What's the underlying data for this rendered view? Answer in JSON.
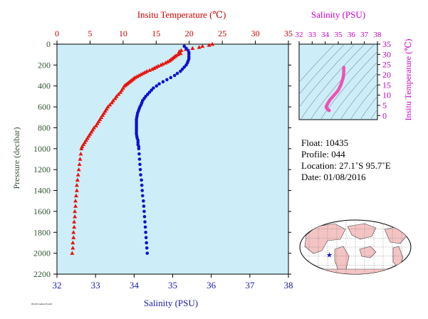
{
  "chart_data": [
    {
      "type": "scatter",
      "title": "",
      "top_axis": {
        "label": "Insitu Temperature (℃)",
        "range": [
          0,
          35
        ],
        "ticks": [
          "0",
          "5",
          "10",
          "15",
          "20",
          "25",
          "30",
          "35"
        ]
      },
      "bottom_axis": {
        "label": "Salinity (PSU)",
        "range": [
          32,
          38
        ],
        "ticks": [
          "32",
          "33",
          "34",
          "35",
          "36",
          "37",
          "38"
        ]
      },
      "left_axis": {
        "label": "Pressure (decibar)",
        "range": [
          0,
          2200
        ],
        "inverted": true,
        "ticks": [
          "0",
          "200",
          "400",
          "600",
          "800",
          "1000",
          "1200",
          "1400",
          "1600",
          "1800",
          "2000",
          "2200"
        ]
      },
      "background": "#cdeef8",
      "series": [
        {
          "key": "temperature",
          "axis": "top",
          "marker": "triangle",
          "color": "#e8140c",
          "points": [
            [
              23.5,
              0
            ],
            [
              23.0,
              10
            ],
            [
              22.0,
              20
            ],
            [
              21.5,
              30
            ],
            [
              20.5,
              40
            ],
            [
              19.5,
              50
            ],
            [
              18.8,
              60
            ],
            [
              18.5,
              70
            ],
            [
              18.6,
              80
            ],
            [
              18.7,
              90
            ],
            [
              18.3,
              100
            ],
            [
              18.0,
              110
            ],
            [
              17.8,
              120
            ],
            [
              17.6,
              130
            ],
            [
              17.4,
              140
            ],
            [
              17.2,
              150
            ],
            [
              17.0,
              160
            ],
            [
              16.7,
              170
            ],
            [
              16.4,
              180
            ],
            [
              16.0,
              190
            ],
            [
              15.7,
              200
            ],
            [
              15.3,
              210
            ],
            [
              15.0,
              220
            ],
            [
              14.7,
              230
            ],
            [
              14.4,
              240
            ],
            [
              14.0,
              250
            ],
            [
              13.6,
              260
            ],
            [
              13.3,
              270
            ],
            [
              13.0,
              280
            ],
            [
              12.7,
              290
            ],
            [
              12.4,
              300
            ],
            [
              12.1,
              310
            ],
            [
              11.8,
              320
            ],
            [
              11.6,
              330
            ],
            [
              11.4,
              340
            ],
            [
              11.2,
              350
            ],
            [
              11.0,
              360
            ],
            [
              10.8,
              370
            ],
            [
              10.6,
              380
            ],
            [
              10.4,
              390
            ],
            [
              10.2,
              400
            ],
            [
              10.0,
              420
            ],
            [
              9.8,
              440
            ],
            [
              9.6,
              460
            ],
            [
              9.3,
              480
            ],
            [
              9.0,
              500
            ],
            [
              8.8,
              520
            ],
            [
              8.5,
              540
            ],
            [
              8.3,
              560
            ],
            [
              8.0,
              580
            ],
            [
              7.7,
              600
            ],
            [
              7.5,
              620
            ],
            [
              7.3,
              640
            ],
            [
              7.1,
              660
            ],
            [
              6.9,
              680
            ],
            [
              6.7,
              700
            ],
            [
              6.5,
              720
            ],
            [
              6.3,
              740
            ],
            [
              6.1,
              760
            ],
            [
              5.9,
              780
            ],
            [
              5.6,
              800
            ],
            [
              5.4,
              820
            ],
            [
              5.2,
              840
            ],
            [
              5.0,
              860
            ],
            [
              4.8,
              880
            ],
            [
              4.6,
              900
            ],
            [
              4.4,
              920
            ],
            [
              4.2,
              940
            ],
            [
              4.0,
              960
            ],
            [
              3.8,
              980
            ],
            [
              3.7,
              1000
            ],
            [
              3.6,
              1050
            ],
            [
              3.5,
              1100
            ],
            [
              3.4,
              1150
            ],
            [
              3.3,
              1200
            ],
            [
              3.2,
              1250
            ],
            [
              3.1,
              1300
            ],
            [
              3.0,
              1350
            ],
            [
              3.0,
              1400
            ],
            [
              2.9,
              1450
            ],
            [
              2.8,
              1500
            ],
            [
              2.8,
              1550
            ],
            [
              2.7,
              1600
            ],
            [
              2.7,
              1650
            ],
            [
              2.6,
              1700
            ],
            [
              2.6,
              1750
            ],
            [
              2.5,
              1800
            ],
            [
              2.5,
              1850
            ],
            [
              2.4,
              1900
            ],
            [
              2.4,
              1950
            ],
            [
              2.3,
              2000
            ]
          ]
        },
        {
          "key": "salinity",
          "axis": "bottom",
          "marker": "circle",
          "color": "#1010d0",
          "points": [
            [
              35.3,
              20
            ],
            [
              35.35,
              40
            ],
            [
              35.4,
              60
            ],
            [
              35.42,
              80
            ],
            [
              35.42,
              100
            ],
            [
              35.42,
              120
            ],
            [
              35.42,
              140
            ],
            [
              35.4,
              160
            ],
            [
              35.38,
              180
            ],
            [
              35.35,
              200
            ],
            [
              35.3,
              220
            ],
            [
              35.25,
              240
            ],
            [
              35.2,
              260
            ],
            [
              35.12,
              280
            ],
            [
              35.05,
              300
            ],
            [
              34.95,
              320
            ],
            [
              34.85,
              340
            ],
            [
              34.75,
              360
            ],
            [
              34.65,
              380
            ],
            [
              34.58,
              400
            ],
            [
              34.5,
              420
            ],
            [
              34.45,
              440
            ],
            [
              34.4,
              460
            ],
            [
              34.35,
              480
            ],
            [
              34.3,
              500
            ],
            [
              34.26,
              520
            ],
            [
              34.22,
              540
            ],
            [
              34.2,
              560
            ],
            [
              34.18,
              580
            ],
            [
              34.15,
              600
            ],
            [
              34.13,
              620
            ],
            [
              34.11,
              640
            ],
            [
              34.09,
              660
            ],
            [
              34.08,
              680
            ],
            [
              34.07,
              700
            ],
            [
              34.06,
              720
            ],
            [
              34.06,
              740
            ],
            [
              34.06,
              760
            ],
            [
              34.06,
              780
            ],
            [
              34.06,
              800
            ],
            [
              34.06,
              820
            ],
            [
              34.06,
              840
            ],
            [
              34.06,
              860
            ],
            [
              34.07,
              880
            ],
            [
              34.08,
              900
            ],
            [
              34.1,
              920
            ],
            [
              34.1,
              940
            ],
            [
              34.1,
              960
            ],
            [
              34.12,
              980
            ],
            [
              34.12,
              1000
            ],
            [
              34.13,
              1050
            ],
            [
              34.14,
              1100
            ],
            [
              34.15,
              1150
            ],
            [
              34.16,
              1200
            ],
            [
              34.17,
              1250
            ],
            [
              34.19,
              1300
            ],
            [
              34.2,
              1350
            ],
            [
              34.21,
              1400
            ],
            [
              34.22,
              1450
            ],
            [
              34.24,
              1500
            ],
            [
              34.25,
              1550
            ],
            [
              34.26,
              1600
            ],
            [
              34.27,
              1650
            ],
            [
              34.28,
              1700
            ],
            [
              34.29,
              1750
            ],
            [
              34.3,
              1800
            ],
            [
              34.31,
              1850
            ],
            [
              34.32,
              1900
            ],
            [
              34.33,
              1950
            ],
            [
              34.34,
              2000
            ]
          ]
        }
      ]
    },
    {
      "type": "scatter",
      "title": "",
      "top_axis": {
        "label": "Salinity (PSU)",
        "range": [
          32,
          38
        ],
        "ticks": [
          "32",
          "33",
          "34",
          "35",
          "36",
          "37",
          "38"
        ]
      },
      "right_axis": {
        "label": "Insitu Temperature (℃)",
        "range": [
          -2,
          35
        ],
        "ticks": [
          "0",
          "5",
          "10",
          "15",
          "20",
          "25",
          "30",
          "35"
        ]
      },
      "background": "#cdeef8",
      "series": [
        {
          "key": "ts",
          "marker": "circle",
          "color": "#f050b4",
          "points": [
            [
              35.42,
              23.5
            ],
            [
              35.42,
              22.5
            ],
            [
              35.42,
              21.5
            ],
            [
              35.41,
              20.5
            ],
            [
              35.4,
              19.5
            ],
            [
              35.38,
              18.8
            ],
            [
              35.35,
              18.0
            ],
            [
              35.3,
              17.0
            ],
            [
              35.25,
              16.0
            ],
            [
              35.2,
              15.0
            ],
            [
              35.12,
              14.0
            ],
            [
              35.05,
              13.0
            ],
            [
              34.95,
              12.0
            ],
            [
              34.85,
              11.2
            ],
            [
              34.75,
              10.5
            ],
            [
              34.65,
              9.8
            ],
            [
              34.55,
              9.0
            ],
            [
              34.45,
              8.3
            ],
            [
              34.35,
              7.5
            ],
            [
              34.28,
              6.8
            ],
            [
              34.2,
              6.0
            ],
            [
              34.15,
              5.3
            ],
            [
              34.1,
              4.7
            ],
            [
              34.08,
              4.2
            ],
            [
              34.1,
              3.8
            ],
            [
              34.15,
              3.4
            ],
            [
              34.2,
              3.0
            ],
            [
              34.25,
              2.7
            ],
            [
              34.3,
              2.5
            ]
          ]
        }
      ]
    }
  ],
  "info": {
    "float": "Float:  10435",
    "profile": "Profile:  044",
    "location": "Location:  27.1˚S  95.7˚E",
    "date": "Date:  01/08/2016"
  },
  "map": {
    "marker": "★",
    "marker_lon": 95.7,
    "marker_lat": -27.1
  },
  "footer_note": "INCOIS ARGO FLOAT",
  "colors": {
    "temperature": "#cc0000",
    "salinity_axis": "#1a1aaa",
    "ts_axis": "#cc00cc",
    "pressure_axis": "#335533",
    "plot_background": "#cdeef8"
  }
}
